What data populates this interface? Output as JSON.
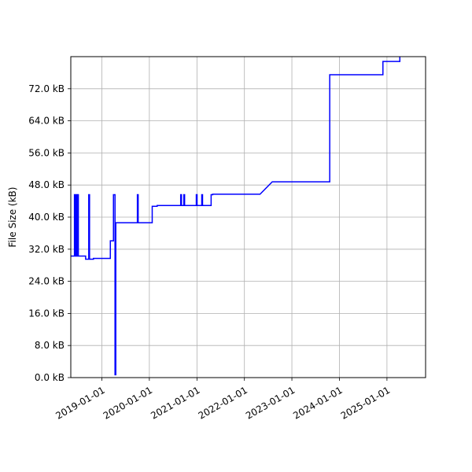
{
  "chart_data": {
    "type": "line",
    "title": "",
    "xlabel": "",
    "ylabel": "File Size (kB)",
    "grid": true,
    "line_color": "#0000ff",
    "xlim": [
      "2018-05-07",
      "2025-10-25"
    ],
    "ylim": [
      0,
      80
    ],
    "y_ticks": [
      0,
      8,
      16,
      24,
      32,
      40,
      48,
      56,
      64,
      72
    ],
    "y_tick_labels": [
      "0.0 kB",
      "8.0 kB",
      "16.0 kB",
      "24.0 kB",
      "32.0 kB",
      "40.0 kB",
      "48.0 kB",
      "56.0 kB",
      "64.0 kB",
      "72.0 kB"
    ],
    "x_ticks": [
      "2019-01-01",
      "2020-01-01",
      "2021-01-01",
      "2022-01-01",
      "2023-01-01",
      "2024-01-01",
      "2025-01-01"
    ],
    "x_tick_labels": [
      "2019-01-01",
      "2020-01-01",
      "2021-01-01",
      "2022-01-01",
      "2023-01-01",
      "2024-01-01",
      "2025-01-01"
    ],
    "series": [
      {
        "x": [
          "2018-05-07",
          "2018-06-04",
          "2018-06-04",
          "2018-06-10",
          "2018-06-10",
          "2018-06-16",
          "2018-06-16",
          "2018-06-22",
          "2018-06-22",
          "2018-06-28",
          "2018-06-28",
          "2018-07-04",
          "2018-07-04",
          "2018-07-10",
          "2018-07-10",
          "2018-08-29",
          "2018-08-29",
          "2018-09-22",
          "2018-09-22",
          "2018-09-28",
          "2018-09-28",
          "2018-10-28",
          "2018-10-28",
          "2019-03-07",
          "2019-03-07",
          "2019-03-31",
          "2019-03-31",
          "2019-04-12",
          "2019-04-12",
          "2019-04-18",
          "2019-04-18",
          "2019-04-24",
          "2019-04-24",
          "2019-10-01",
          "2019-10-01",
          "2019-10-07",
          "2019-10-07",
          "2020-01-23",
          "2020-01-23",
          "2020-03-01",
          "2020-03-01",
          "2020-08-29",
          "2020-08-29",
          "2020-09-04",
          "2020-09-04",
          "2020-09-22",
          "2020-09-22",
          "2020-09-28",
          "2020-09-28",
          "2020-12-27",
          "2020-12-27",
          "2021-01-02",
          "2021-01-02",
          "2021-02-07",
          "2021-02-07",
          "2021-02-13",
          "2021-02-13",
          "2021-04-20",
          "2021-04-20",
          "2021-05-02",
          "2021-05-02",
          "2022-05-01",
          "2022-08-03",
          "2023-10-19",
          "2023-10-19",
          "2024-12-01",
          "2024-12-01",
          "2025-04-10",
          "2025-04-10",
          "2025-10-25"
        ],
        "y": [
          30.3,
          30.3,
          45.6,
          45.6,
          30.3,
          30.3,
          45.6,
          45.6,
          30.3,
          30.3,
          45.6,
          45.6,
          30.3,
          30.3,
          30.3,
          30.3,
          29.5,
          29.5,
          45.6,
          45.6,
          29.5,
          29.5,
          29.7,
          29.7,
          34.1,
          34.1,
          45.6,
          45.6,
          0.7,
          0.7,
          38.6,
          38.6,
          38.6,
          38.6,
          45.6,
          45.6,
          38.6,
          38.6,
          42.7,
          42.7,
          42.9,
          42.9,
          45.6,
          45.6,
          42.9,
          42.9,
          45.6,
          45.6,
          42.9,
          42.9,
          45.6,
          45.6,
          42.9,
          42.9,
          45.6,
          45.6,
          42.9,
          42.9,
          45.6,
          45.6,
          45.7,
          45.7,
          48.8,
          48.8,
          75.5,
          75.5,
          78.8,
          78.8,
          80.5,
          80.5
        ]
      }
    ]
  }
}
